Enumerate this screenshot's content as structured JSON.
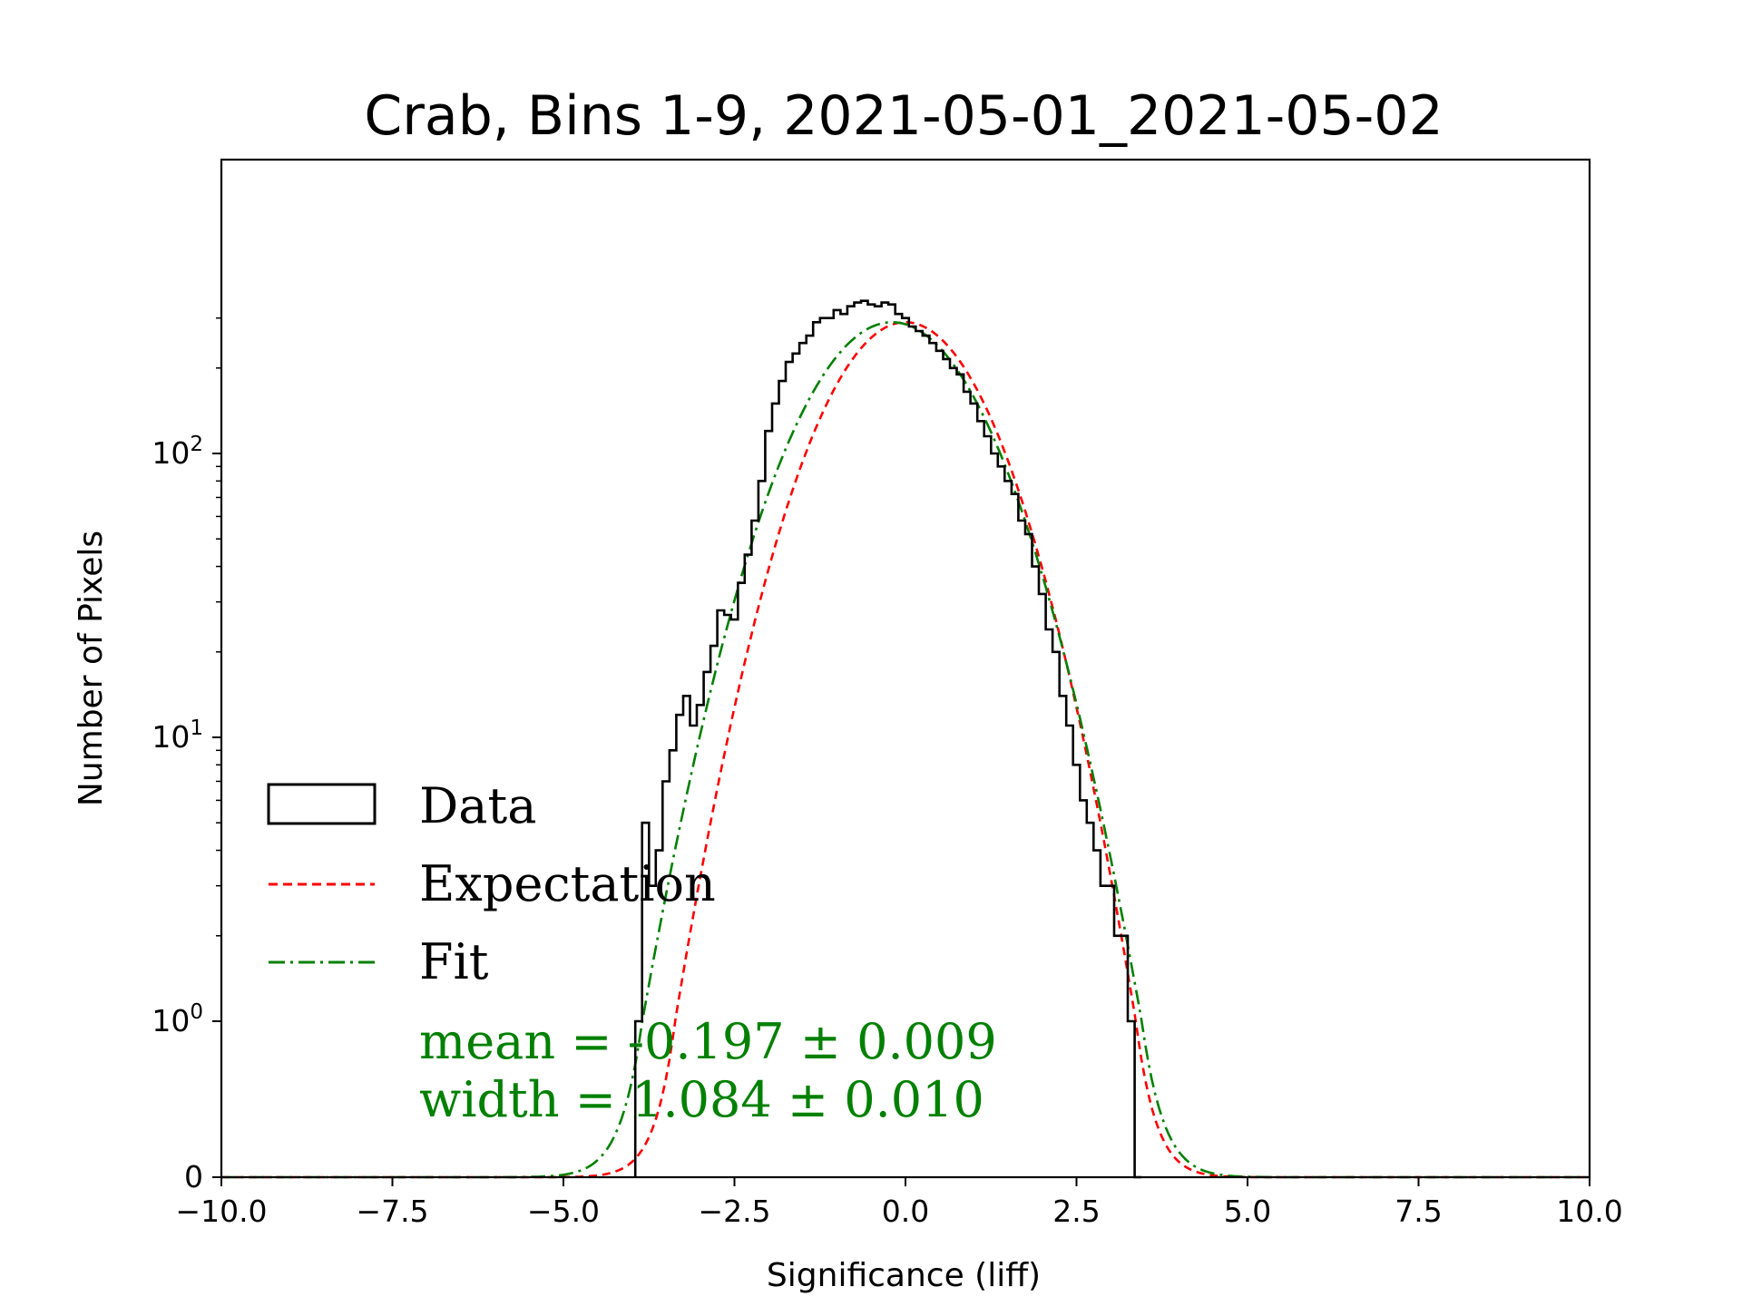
{
  "chart_data": {
    "type": "histogram",
    "title": "Crab, Bins 1-9, 2021-05-01_2021-05-02",
    "xlabel": "Significance (liff)",
    "ylabel": "Number of Pixels",
    "xlim": [
      -10.0,
      10.0
    ],
    "yscale": "symlog",
    "xticks": [
      "−10.0",
      "−7.5",
      "−5.0",
      "−2.5",
      "0.0",
      "2.5",
      "5.0",
      "7.5",
      "10.0"
    ],
    "xtick_values": [
      -10,
      -7.5,
      -5,
      -2.5,
      0,
      2.5,
      5,
      7.5,
      10
    ],
    "yticks": [
      {
        "value": 0,
        "label": "0"
      },
      {
        "value": 1,
        "base": "10",
        "exp": "0"
      },
      {
        "value": 10,
        "base": "10",
        "exp": "1"
      },
      {
        "value": 100,
        "base": "10",
        "exp": "2"
      }
    ],
    "series": [
      {
        "name": "Data",
        "kind": "step-histogram",
        "color": "#000000",
        "x": [
          -3.9,
          -3.8,
          -3.7,
          -3.6,
          -3.5,
          -3.4,
          -3.3,
          -3.2,
          -3.1,
          -3.0,
          -2.9,
          -2.8,
          -2.7,
          -2.6,
          -2.5,
          -2.4,
          -2.3,
          -2.2,
          -2.1,
          -2.0,
          -1.9,
          -1.8,
          -1.7,
          -1.6,
          -1.5,
          -1.4,
          -1.3,
          -1.2,
          -1.1,
          -1.0,
          -0.9,
          -0.8,
          -0.7,
          -0.6,
          -0.5,
          -0.4,
          -0.3,
          -0.2,
          -0.1,
          0.0,
          0.1,
          0.2,
          0.3,
          0.4,
          0.5,
          0.6,
          0.7,
          0.8,
          0.9,
          1.0,
          1.1,
          1.2,
          1.3,
          1.4,
          1.5,
          1.6,
          1.7,
          1.8,
          1.9,
          2.0,
          2.1,
          2.2,
          2.3,
          2.4,
          2.5,
          2.6,
          2.7,
          2.8,
          2.9,
          3.0,
          3.1,
          3.2,
          3.3,
          3.4
        ],
        "values": [
          1,
          5,
          3,
          4,
          7,
          9,
          12,
          14,
          11,
          13,
          17,
          21,
          28,
          27,
          26,
          35,
          44,
          58,
          80,
          120,
          150,
          180,
          210,
          225,
          245,
          260,
          290,
          300,
          300,
          320,
          310,
          330,
          340,
          345,
          335,
          330,
          340,
          335,
          310,
          300,
          280,
          270,
          260,
          245,
          230,
          215,
          200,
          190,
          165,
          150,
          130,
          115,
          100,
          90,
          80,
          72,
          58,
          52,
          40,
          32,
          24,
          20,
          14,
          11,
          8,
          6,
          5,
          4,
          3,
          3,
          2,
          2,
          1,
          0
        ]
      },
      {
        "name": "Expectation",
        "kind": "gaussian",
        "color": "#ff0000",
        "style": "dashed",
        "mean": 0.0,
        "width": 1.0,
        "amplitude": 290
      },
      {
        "name": "Fit",
        "kind": "gaussian",
        "color": "#008000",
        "style": "dashdot",
        "mean": -0.197,
        "width": 1.084,
        "amplitude": 290
      }
    ],
    "annotations": [
      {
        "text": "mean = -0.197 ± 0.009",
        "color": "#008000"
      },
      {
        "text": "width = 1.084 ± 0.010",
        "color": "#008000"
      }
    ],
    "legend": {
      "placement": "lower-left"
    }
  }
}
